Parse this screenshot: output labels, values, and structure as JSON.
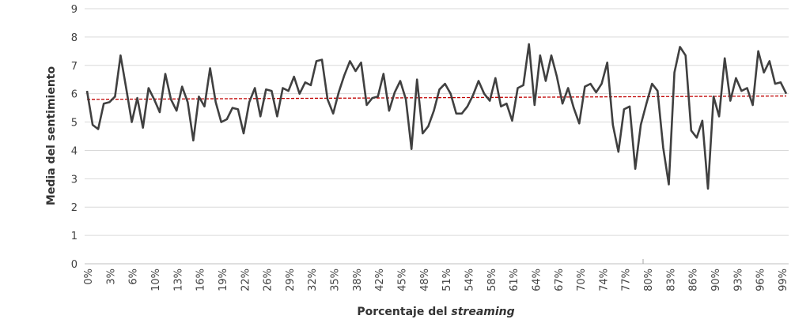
{
  "chart_data": {
    "type": "line",
    "xlabel_prefix": "Porcentaje del ",
    "xlabel_emph": "streaming",
    "ylabel": "Media del sentimiento",
    "ylim": [
      0,
      9
    ],
    "yticks": [
      0,
      1,
      2,
      3,
      4,
      5,
      6,
      7,
      8,
      9
    ],
    "x_tick_labels": [
      "0%",
      "3%",
      "6%",
      "10%",
      "13%",
      "16%",
      "19%",
      "22%",
      "26%",
      "29%",
      "32%",
      "35%",
      "38%",
      "42%",
      "45%",
      "48%",
      "51%",
      "54%",
      "58%",
      "61%",
      "64%",
      "67%",
      "70%",
      "74%",
      "77%",
      "80%",
      "83%",
      "86%",
      "90%",
      "93%",
      "96%",
      "99%"
    ],
    "grid": true,
    "trend": {
      "start": 5.8,
      "end": 5.92,
      "color": "#c00000",
      "style": "dashed"
    },
    "series_color": "#404040",
    "values": [
      6.1,
      4.9,
      4.75,
      5.65,
      5.7,
      5.9,
      7.35,
      6.2,
      5.0,
      5.85,
      4.8,
      6.2,
      5.8,
      5.35,
      6.7,
      5.8,
      5.4,
      6.25,
      5.7,
      4.35,
      5.9,
      5.55,
      6.9,
      5.7,
      5.0,
      5.1,
      5.5,
      5.45,
      4.6,
      5.7,
      6.2,
      5.2,
      6.15,
      6.1,
      5.2,
      6.2,
      6.1,
      6.6,
      6.0,
      6.4,
      6.3,
      7.15,
      7.2,
      5.8,
      5.3,
      6.05,
      6.65,
      7.15,
      6.8,
      7.1,
      5.6,
      5.85,
      5.9,
      6.7,
      5.4,
      6.05,
      6.45,
      5.8,
      4.05,
      6.5,
      4.6,
      4.85,
      5.4,
      6.15,
      6.35,
      6.0,
      5.3,
      5.3,
      5.55,
      5.95,
      6.45,
      6.0,
      5.75,
      6.55,
      5.55,
      5.65,
      5.05,
      6.2,
      6.3,
      7.75,
      5.6,
      7.35,
      6.45,
      7.35,
      6.6,
      5.65,
      6.2,
      5.5,
      4.95,
      6.25,
      6.35,
      6.05,
      6.35,
      7.1,
      4.9,
      3.95,
      5.45,
      5.55,
      3.35,
      4.9,
      5.65,
      6.35,
      6.1,
      4.1,
      2.8,
      6.75,
      7.65,
      7.35,
      4.7,
      4.45,
      5.05,
      2.65,
      5.9,
      5.2,
      7.25,
      5.75,
      6.55,
      6.1,
      6.2,
      5.6,
      7.5,
      6.75,
      7.15,
      6.35,
      6.4,
      6.0
    ]
  }
}
